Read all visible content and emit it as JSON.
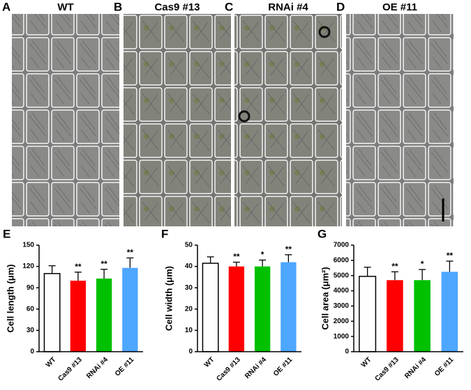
{
  "image_panels": [
    {
      "panel": "A",
      "label": "WT"
    },
    {
      "panel": "B",
      "label": "Cas9 #13"
    },
    {
      "panel": "C",
      "label": "RNAi #4"
    },
    {
      "panel": "D",
      "label": "OE #11"
    }
  ],
  "chart_data": [
    {
      "type": "bar",
      "panel": "E",
      "ylabel": "Cell length (μm)",
      "categories": [
        "WT",
        "Cas9 #13",
        "RNAi #4",
        "OE #11"
      ],
      "values": [
        110,
        100,
        103,
        118
      ],
      "errors": [
        11,
        12,
        13,
        14
      ],
      "annotations": [
        null,
        "**",
        "**",
        "**"
      ],
      "colors": [
        "#ffffff",
        "#ff0000",
        "#00c000",
        "#4da6ff"
      ],
      "ylim": [
        0,
        150
      ],
      "yticks": [
        0,
        30,
        60,
        90,
        120,
        150
      ]
    },
    {
      "type": "bar",
      "panel": "F",
      "ylabel": "Cell width (μm)",
      "categories": [
        "WT",
        "Cas9 #13",
        "RNAi #4",
        "OE #11"
      ],
      "values": [
        41.5,
        40,
        40,
        42
      ],
      "errors": [
        3,
        2,
        3,
        3.5
      ],
      "annotations": [
        null,
        "**",
        "*",
        "**"
      ],
      "colors": [
        "#ffffff",
        "#ff0000",
        "#00c000",
        "#4da6ff"
      ],
      "ylim": [
        0,
        50
      ],
      "yticks": [
        0,
        10,
        20,
        30,
        40,
        50
      ]
    },
    {
      "type": "bar",
      "panel": "G",
      "ylabel": "Cell area (μm²)",
      "categories": [
        "WT",
        "Cas9 #13",
        "RNAi #4",
        "OE #11"
      ],
      "values": [
        4950,
        4700,
        4700,
        5250
      ],
      "errors": [
        600,
        550,
        700,
        700
      ],
      "annotations": [
        null,
        "**",
        "*",
        "**"
      ],
      "colors": [
        "#ffffff",
        "#ff0000",
        "#00c000",
        "#4da6ff"
      ],
      "ylim": [
        0,
        7000
      ],
      "yticks": [
        0,
        1000,
        2000,
        3000,
        4000,
        5000,
        6000,
        7000
      ]
    }
  ]
}
